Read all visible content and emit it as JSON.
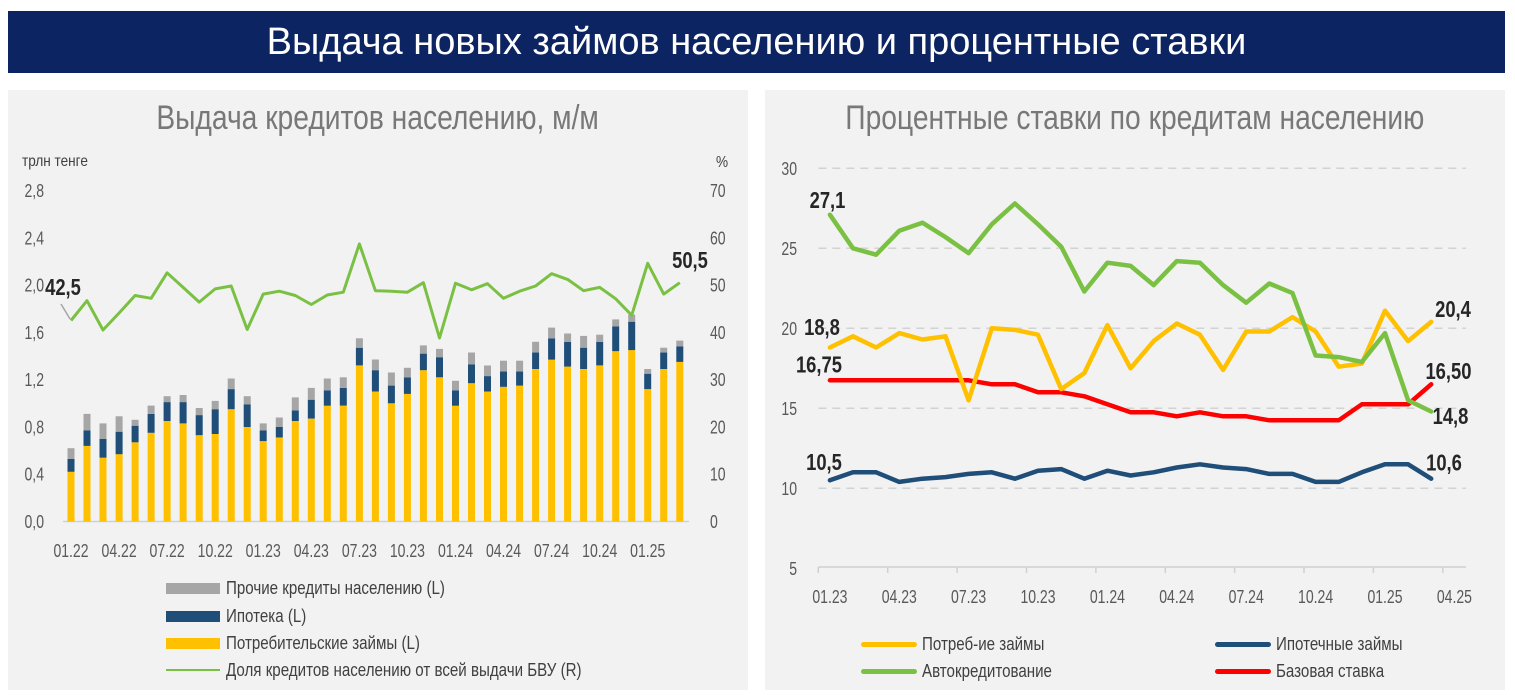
{
  "header": {
    "title": "Выдача новых займов населению и процентные ставки"
  },
  "colors": {
    "header_bg": "#0c2461",
    "panel_bg": "#f2f2f2"
  },
  "chart_data": [
    {
      "type": "bar",
      "subtype": "stacked-bar-with-line",
      "title": "Выдача кредитов населению, м/м",
      "xlabel": "",
      "ylabel": "трлн тенге",
      "y2label": "%",
      "ylim": [
        0,
        2.8
      ],
      "y2lim": [
        0,
        70
      ],
      "grid": false,
      "yticks": [
        {
          "value": 0.0,
          "label": "0,0"
        },
        {
          "value": 0.4,
          "label": "0,4"
        },
        {
          "value": 0.8,
          "label": "0,8"
        },
        {
          "value": 1.2,
          "label": "1,2"
        },
        {
          "value": 1.6,
          "label": "1,6"
        },
        {
          "value": 2.0,
          "label": "2,0"
        },
        {
          "value": 2.4,
          "label": "2,4"
        },
        {
          "value": 2.8,
          "label": "2,8"
        }
      ],
      "y2ticks": [
        {
          "value": 0,
          "label": "0"
        },
        {
          "value": 10,
          "label": "10"
        },
        {
          "value": 20,
          "label": "20"
        },
        {
          "value": 30,
          "label": "30"
        },
        {
          "value": 40,
          "label": "40"
        },
        {
          "value": 50,
          "label": "50"
        },
        {
          "value": 60,
          "label": "60"
        },
        {
          "value": 70,
          "label": "70"
        }
      ],
      "categories": [
        "01.22",
        "02.22",
        "03.22",
        "04.22",
        "05.22",
        "06.22",
        "07.22",
        "08.22",
        "09.22",
        "10.22",
        "11.22",
        "12.22",
        "01.23",
        "02.23",
        "03.23",
        "04.23",
        "05.23",
        "06.23",
        "07.23",
        "08.23",
        "09.23",
        "10.23",
        "11.23",
        "12.23",
        "01.24",
        "02.24",
        "03.24",
        "04.24",
        "05.24",
        "06.24",
        "07.24",
        "08.24",
        "09.24",
        "10.24",
        "11.24",
        "12.24",
        "01.25",
        "02.25",
        "03.25"
      ],
      "xtick_labels": [
        {
          "index": 0,
          "label": "01.22"
        },
        {
          "index": 3,
          "label": "04.22"
        },
        {
          "index": 6,
          "label": "07.22"
        },
        {
          "index": 9,
          "label": "10.22"
        },
        {
          "index": 12,
          "label": "01.23"
        },
        {
          "index": 15,
          "label": "04.23"
        },
        {
          "index": 18,
          "label": "07.23"
        },
        {
          "index": 21,
          "label": "10.23"
        },
        {
          "index": 24,
          "label": "01.24"
        },
        {
          "index": 27,
          "label": "04.24"
        },
        {
          "index": 30,
          "label": "07.24"
        },
        {
          "index": 33,
          "label": "10.24"
        },
        {
          "index": 36,
          "label": "01.25"
        }
      ],
      "series": [
        {
          "key": "consumer",
          "name": "Потребительские займы (L)",
          "type": "bar",
          "axis": "left",
          "color": "#ffc000",
          "values": [
            0.42,
            0.64,
            0.54,
            0.57,
            0.67,
            0.75,
            0.85,
            0.83,
            0.73,
            0.74,
            0.95,
            0.8,
            0.68,
            0.71,
            0.85,
            0.87,
            0.98,
            0.98,
            1.32,
            1.1,
            1.0,
            1.08,
            1.28,
            1.22,
            0.98,
            1.17,
            1.1,
            1.14,
            1.15,
            1.29,
            1.37,
            1.31,
            1.29,
            1.32,
            1.44,
            1.45,
            1.12,
            1.29,
            1.35
          ]
        },
        {
          "key": "mortgage",
          "name": "Ипотека (L)",
          "type": "bar",
          "axis": "left",
          "color": "#1f4e79",
          "values": [
            0.11,
            0.13,
            0.16,
            0.19,
            0.14,
            0.16,
            0.16,
            0.18,
            0.17,
            0.21,
            0.17,
            0.19,
            0.09,
            0.09,
            0.09,
            0.16,
            0.13,
            0.15,
            0.15,
            0.18,
            0.15,
            0.14,
            0.14,
            0.17,
            0.13,
            0.16,
            0.13,
            0.13,
            0.12,
            0.14,
            0.18,
            0.21,
            0.18,
            0.2,
            0.21,
            0.24,
            0.13,
            0.14,
            0.13
          ]
        },
        {
          "key": "other",
          "name": "Прочие кредиты населению (L)",
          "type": "bar",
          "axis": "left",
          "color": "#a6a6a6",
          "values": [
            0.09,
            0.14,
            0.13,
            0.13,
            0.05,
            0.07,
            0.05,
            0.06,
            0.06,
            0.07,
            0.09,
            0.07,
            0.06,
            0.08,
            0.11,
            0.1,
            0.1,
            0.09,
            0.08,
            0.09,
            0.11,
            0.08,
            0.07,
            0.07,
            0.08,
            0.1,
            0.09,
            0.09,
            0.09,
            0.09,
            0.09,
            0.07,
            0.1,
            0.06,
            0.06,
            0.06,
            0.04,
            0.04,
            0.05
          ]
        },
        {
          "key": "share",
          "name": "Доля кредитов населению от всей выдачи БВУ (R)",
          "type": "line",
          "axis": "right",
          "color": "#7ac143",
          "values": [
            42.5,
            46.7,
            40.5,
            44.1,
            47.8,
            47.2,
            52.6,
            49.5,
            46.4,
            49.2,
            49.8,
            40.6,
            48.1,
            48.7,
            47.8,
            45.9,
            47.9,
            48.5,
            58.7,
            48.8,
            48.7,
            48.5,
            50.5,
            38.8,
            50.4,
            49.0,
            50.3,
            47.2,
            48.7,
            49.8,
            52.4,
            51.2,
            48.8,
            49.5,
            47.1,
            43.6,
            54.6,
            48.1,
            50.5
          ]
        }
      ],
      "annotations": [
        {
          "series": "share",
          "index": 0,
          "text": "42,5"
        },
        {
          "series": "share",
          "index": 38,
          "text": "50,5"
        }
      ],
      "legend": {
        "position": "bottom",
        "entries": [
          {
            "series": "other",
            "label": "Прочие кредиты населению (L)"
          },
          {
            "series": "mortgage",
            "label": "Ипотека (L)"
          },
          {
            "series": "consumer",
            "label": "Потребительские займы (L)"
          },
          {
            "series": "share",
            "label": "Доля кредитов населению от всей выдачи БВУ (R)"
          }
        ]
      }
    },
    {
      "type": "line",
      "title": "Процентные ставки по кредитам населению",
      "xlabel": "",
      "ylabel": "",
      "ylim": [
        5,
        30
      ],
      "grid": true,
      "yticks": [
        {
          "value": 5,
          "label": "5"
        },
        {
          "value": 10,
          "label": "10"
        },
        {
          "value": 15,
          "label": "15"
        },
        {
          "value": 20,
          "label": "20"
        },
        {
          "value": 25,
          "label": "25"
        },
        {
          "value": 30,
          "label": "30"
        }
      ],
      "categories": [
        "01.23",
        "02.23",
        "03.23",
        "04.23",
        "05.23",
        "06.23",
        "07.23",
        "08.23",
        "09.23",
        "10.23",
        "11.23",
        "12.23",
        "01.24",
        "02.24",
        "03.24",
        "04.24",
        "05.24",
        "06.24",
        "07.24",
        "08.24",
        "09.24",
        "10.24",
        "11.24",
        "12.24",
        "01.25",
        "02.25",
        "03.25",
        "04.25"
      ],
      "xtick_labels": [
        {
          "index": 0,
          "label": "01.23"
        },
        {
          "index": 3,
          "label": "04.23"
        },
        {
          "index": 6,
          "label": "07.23"
        },
        {
          "index": 9,
          "label": "10.23"
        },
        {
          "index": 12,
          "label": "01.24"
        },
        {
          "index": 15,
          "label": "04.24"
        },
        {
          "index": 18,
          "label": "07.24"
        },
        {
          "index": 21,
          "label": "10.24"
        },
        {
          "index": 24,
          "label": "01.25"
        },
        {
          "index": 27,
          "label": "04.25"
        }
      ],
      "series": [
        {
          "key": "consumer",
          "name": "Потреб-ие займы",
          "color": "#ffc000",
          "values": [
            18.8,
            19.5,
            18.8,
            19.7,
            19.3,
            19.5,
            15.5,
            20.0,
            19.9,
            19.6,
            16.2,
            17.2,
            20.2,
            17.5,
            19.2,
            20.3,
            19.6,
            17.4,
            19.8,
            19.8,
            20.7,
            19.8,
            17.6,
            17.8,
            21.1,
            19.2,
            20.4
          ]
        },
        {
          "key": "mortgage",
          "name": "Ипотечные займы",
          "color": "#1f4e79",
          "values": [
            10.5,
            11.0,
            11.0,
            10.4,
            10.6,
            10.7,
            10.9,
            11.0,
            10.6,
            11.1,
            11.2,
            10.6,
            11.1,
            10.8,
            11.0,
            11.3,
            11.5,
            11.3,
            11.2,
            10.9,
            10.9,
            10.4,
            10.4,
            11.0,
            11.5,
            11.5,
            10.6
          ]
        },
        {
          "key": "auto",
          "name": "Автокредитование",
          "color": "#7ac143",
          "values": [
            27.1,
            25.0,
            24.6,
            26.1,
            26.6,
            25.7,
            24.7,
            26.5,
            27.8,
            26.5,
            25.1,
            22.3,
            24.1,
            23.9,
            22.7,
            24.2,
            24.1,
            22.7,
            21.6,
            22.8,
            22.2,
            18.3,
            18.2,
            17.9,
            19.7,
            15.5,
            14.8
          ]
        },
        {
          "key": "base",
          "name": "Базовая ставка",
          "color": "#ff0000",
          "values": [
            16.75,
            16.75,
            16.75,
            16.75,
            16.75,
            16.75,
            16.75,
            16.5,
            16.5,
            16.0,
            16.0,
            15.75,
            15.25,
            14.75,
            14.75,
            14.5,
            14.75,
            14.5,
            14.5,
            14.25,
            14.25,
            14.25,
            14.25,
            15.25,
            15.25,
            15.25,
            16.5
          ]
        }
      ],
      "annotations": [
        {
          "series": "auto",
          "index": 0,
          "text": "27,1"
        },
        {
          "series": "consumer",
          "index": 0,
          "text": "18,8"
        },
        {
          "series": "base",
          "index": 0,
          "text": "16,75"
        },
        {
          "series": "mortgage",
          "index": 0,
          "text": "10,5"
        },
        {
          "series": "consumer",
          "index": 26,
          "text": "20,4"
        },
        {
          "series": "base",
          "index": 26,
          "text": "16,50"
        },
        {
          "series": "auto",
          "index": 26,
          "text": "14,8"
        },
        {
          "series": "mortgage",
          "index": 26,
          "text": "10,6"
        }
      ],
      "legend": {
        "position": "bottom",
        "entries": [
          {
            "series": "consumer",
            "label": "Потреб-ие займы"
          },
          {
            "series": "mortgage",
            "label": "Ипотечные займы"
          },
          {
            "series": "auto",
            "label": "Автокредитование"
          },
          {
            "series": "base",
            "label": "Базовая ставка"
          }
        ]
      }
    }
  ]
}
